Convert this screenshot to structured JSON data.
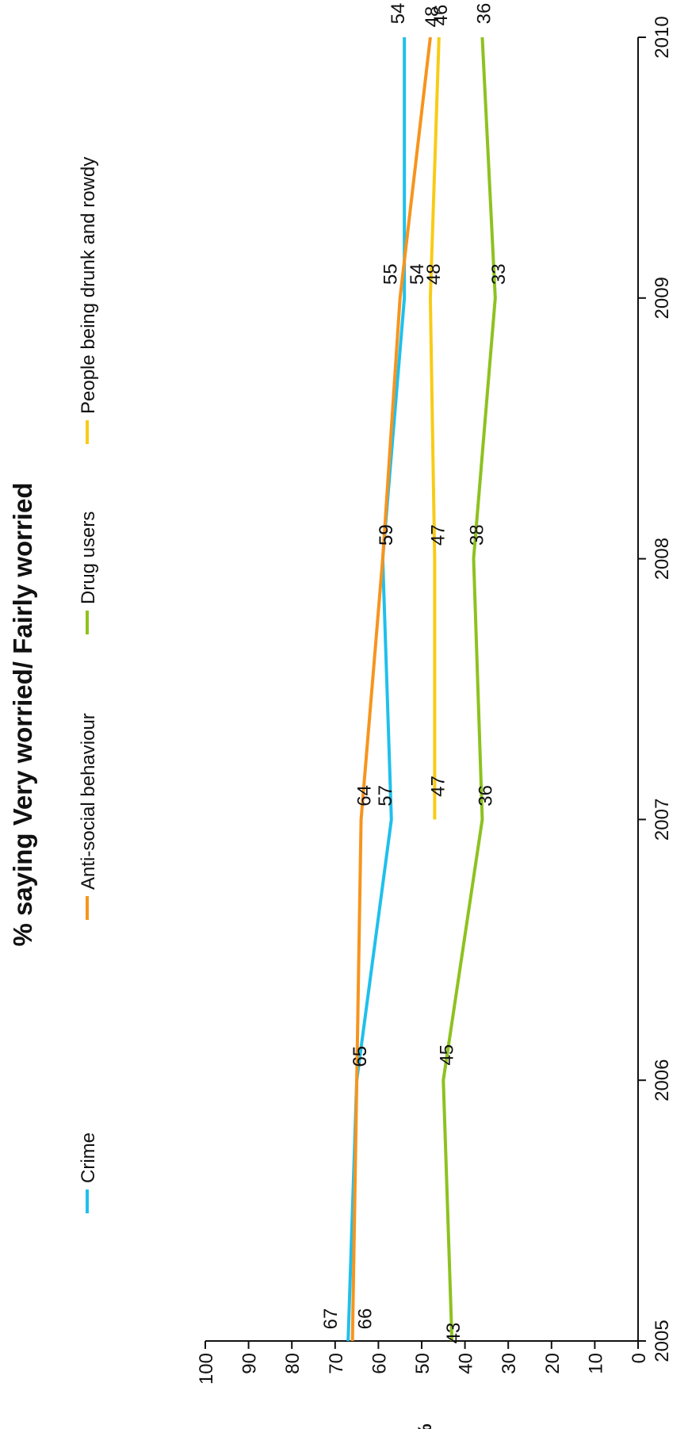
{
  "chart_data": {
    "type": "line",
    "title": "% saying Very worried/ Fairly worried",
    "ylabel": "%",
    "xlabel": "",
    "ylim": [
      0,
      100
    ],
    "y_ticks": [
      "0",
      "10",
      "20",
      "30",
      "40",
      "50",
      "60",
      "70",
      "80",
      "90",
      "100"
    ],
    "x_ticks": [
      "2005",
      "2006",
      "2007",
      "2008",
      "2009",
      "2010"
    ],
    "orientation": "rotated 90 degrees counter-clockwise",
    "legend_position": "top",
    "grid": false,
    "series": [
      {
        "name": "Crime",
        "color": "#1fc0ec",
        "x": [
          2005,
          2006,
          2007,
          2008,
          2009,
          2010
        ],
        "values": [
          67,
          65,
          57,
          59,
          54,
          54
        ],
        "labels": [
          "67",
          "65",
          "57",
          "59",
          "54",
          "54"
        ]
      },
      {
        "name": "Anti-social behaviour",
        "color": "#f7941d",
        "x": [
          2005,
          2006,
          2007,
          2008,
          2009,
          2010
        ],
        "values": [
          66,
          65,
          64,
          59,
          55,
          48
        ],
        "labels": [
          "66",
          "65",
          "64",
          "59",
          "55",
          "48"
        ]
      },
      {
        "name": "Drug users",
        "color": "#8dc21f",
        "x": [
          2005,
          2006,
          2007,
          2008,
          2009,
          2010
        ],
        "values": [
          43,
          45,
          36,
          38,
          33,
          36
        ],
        "labels": [
          "43",
          "45",
          "36",
          "38",
          "33",
          "36"
        ]
      },
      {
        "name": "People being drunk and rowdy",
        "color": "#f8cb16",
        "x": [
          2007,
          2008,
          2009,
          2010
        ],
        "values": [
          47,
          47,
          48,
          46
        ],
        "labels": [
          "47",
          "47",
          "48",
          "46"
        ]
      }
    ]
  }
}
